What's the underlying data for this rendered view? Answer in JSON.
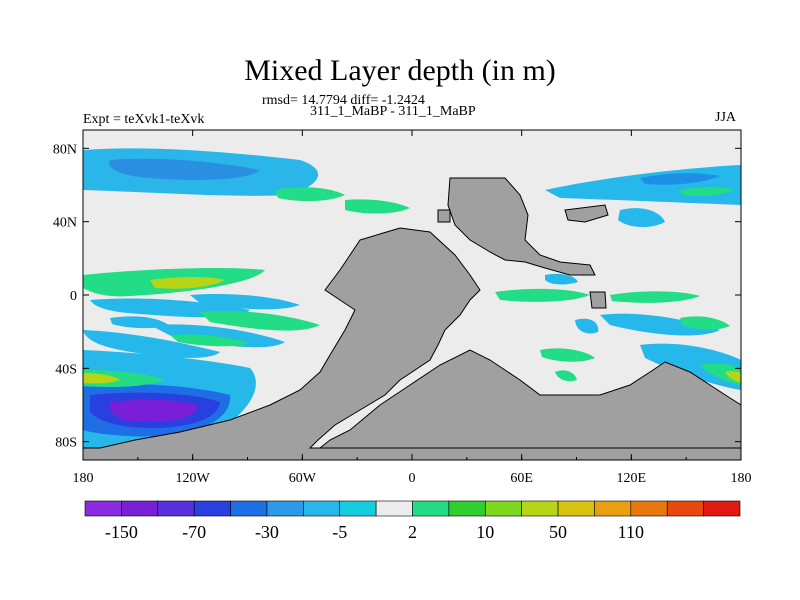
{
  "chart_data": {
    "type": "heatmap",
    "title": "Mixed Layer depth (in m)",
    "stats_line": "rmsd= 14.7794 diff= -1.2424",
    "left_label": "Expt = teXvk1-teXvk",
    "center_label": "311_1_MaBP - 311_1_MaBP",
    "right_label": "JJA",
    "x_ticks": [
      "180",
      "120W",
      "60W",
      "0",
      "60E",
      "120E",
      "180"
    ],
    "y_ticks": [
      "80N",
      "40N",
      "0",
      "40S",
      "80S"
    ],
    "xlim": [
      -180,
      180
    ],
    "ylim": [
      -90,
      90
    ],
    "background_level": "-2 to 2",
    "land_color": "#a0a0a0",
    "colorbar": {
      "colors": [
        "#8a2be2",
        "#7a1fd8",
        "#5a2fe0",
        "#2a3fe0",
        "#1e6fe6",
        "#2b9be8",
        "#26b8ea",
        "#16cde0",
        "#ececec",
        "#22dc86",
        "#2ecf2e",
        "#7ed81e",
        "#b8d416",
        "#d8c410",
        "#e8a010",
        "#e8780e",
        "#e8480c",
        "#e01a10"
      ],
      "labels": [
        "-150",
        "-70",
        "-30",
        "-5",
        "2",
        "10",
        "50",
        "110"
      ]
    }
  }
}
